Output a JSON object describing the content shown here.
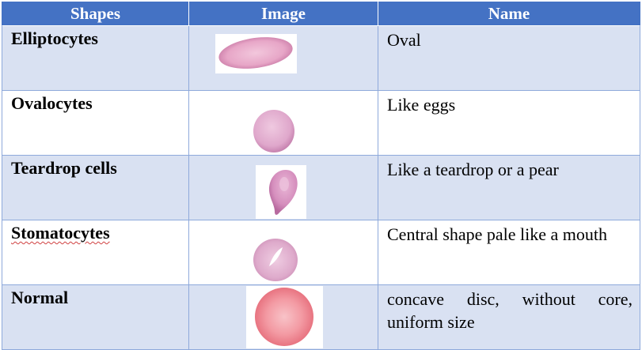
{
  "table": {
    "headers": [
      "Shapes",
      "Image",
      "Name"
    ],
    "rows": [
      {
        "shape": "Elliptocytes",
        "image": "elliptocyte-cell-image",
        "name": "Oval"
      },
      {
        "shape": "Ovalocytes",
        "image": "ovalocyte-cell-image",
        "name": "Like eggs"
      },
      {
        "shape": "Teardrop cells",
        "image": "teardrop-cell-image",
        "name": "Like a teardrop or a pear"
      },
      {
        "shape": "Stomatocytes",
        "image": "stomatocyte-cell-image",
        "name": "Central shape pale like a mouth"
      },
      {
        "shape": "Normal",
        "image": "normal-cell-image",
        "name": "concave disc, without core, uniform size"
      }
    ]
  },
  "colors": {
    "header_bg": "#4472c4",
    "band_bg": "#d9e1f2",
    "border": "#8ea9db",
    "cell_pink": "#e8a8c8",
    "normal_cell": "#f07a86"
  }
}
